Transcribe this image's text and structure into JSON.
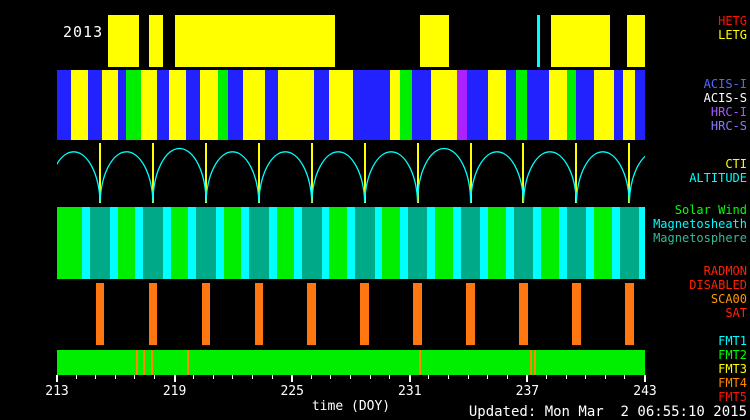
{
  "meta": {
    "updated": "Updated: Mon Mar  2 06:55:10 2015"
  },
  "chart_data": {
    "type": "timeline",
    "title": "2013",
    "xlabel": "time (DOY)",
    "x_range": [
      213,
      243
    ],
    "x_major_ticks": [
      213,
      219,
      225,
      231,
      237,
      243
    ],
    "x_minor_tick_step": 1,
    "bands": [
      {
        "id": "gratings",
        "name": "Gratings",
        "background": "#000000",
        "palette": {
          "LETG": "#ffff00",
          "HETG": "#ff0000"
        },
        "labels": [
          {
            "text": "HETG",
            "color": "#ff1100"
          },
          {
            "text": "LETG",
            "color": "#ffff00"
          }
        ],
        "segments": [
          {
            "start": 215.6,
            "end": 217.2,
            "state": "LETG"
          },
          {
            "start": 217.7,
            "end": 218.4,
            "state": "LETG"
          },
          {
            "start": 219.0,
            "end": 227.2,
            "state": "LETG"
          },
          {
            "start": 231.5,
            "end": 233.0,
            "state": "LETG"
          },
          {
            "start": 238.2,
            "end": 241.2,
            "state": "LETG"
          },
          {
            "start": 242.1,
            "end": 243.0,
            "state": "LETG"
          }
        ],
        "markers": [
          {
            "x": 237.55,
            "color": "#00ffff",
            "w": 3
          }
        ]
      },
      {
        "id": "instruments",
        "name": "Science Instruments",
        "background": "#000000",
        "palette": {
          "ACIS-I": "#2222ff",
          "ACIS-S": "#ffff00",
          "HRC-I": "#aa22ff",
          "HRC-S": "#00ee00"
        },
        "labels": [
          {
            "text": "ACIS-I",
            "color": "#5566ff"
          },
          {
            "text": "ACIS-S",
            "color": "#ffffff"
          },
          {
            "text": "HRC-I",
            "color": "#aa55ff"
          },
          {
            "text": "HRC-S",
            "color": "#8877ff"
          }
        ],
        "segments": [
          {
            "start": 213.0,
            "end": 213.7,
            "state": "ACIS-I"
          },
          {
            "start": 213.7,
            "end": 214.6,
            "state": "ACIS-S"
          },
          {
            "start": 214.6,
            "end": 215.3,
            "state": "ACIS-I"
          },
          {
            "start": 215.3,
            "end": 216.1,
            "state": "ACIS-S"
          },
          {
            "start": 216.1,
            "end": 216.5,
            "state": "ACIS-I"
          },
          {
            "start": 216.5,
            "end": 217.3,
            "state": "HRC-S"
          },
          {
            "start": 217.3,
            "end": 218.1,
            "state": "ACIS-S"
          },
          {
            "start": 218.1,
            "end": 218.7,
            "state": "ACIS-I"
          },
          {
            "start": 218.7,
            "end": 219.6,
            "state": "ACIS-S"
          },
          {
            "start": 219.6,
            "end": 220.3,
            "state": "ACIS-I"
          },
          {
            "start": 220.3,
            "end": 221.2,
            "state": "ACIS-S"
          },
          {
            "start": 221.2,
            "end": 221.7,
            "state": "HRC-S"
          },
          {
            "start": 221.7,
            "end": 222.5,
            "state": "ACIS-I"
          },
          {
            "start": 222.5,
            "end": 223.6,
            "state": "ACIS-S"
          },
          {
            "start": 223.6,
            "end": 224.3,
            "state": "ACIS-I"
          },
          {
            "start": 224.3,
            "end": 226.1,
            "state": "ACIS-S"
          },
          {
            "start": 226.1,
            "end": 226.9,
            "state": "ACIS-I"
          },
          {
            "start": 226.9,
            "end": 228.1,
            "state": "ACIS-S"
          },
          {
            "start": 228.1,
            "end": 230.0,
            "state": "ACIS-I"
          },
          {
            "start": 230.0,
            "end": 230.5,
            "state": "ACIS-S"
          },
          {
            "start": 230.5,
            "end": 231.1,
            "state": "HRC-S"
          },
          {
            "start": 231.1,
            "end": 232.1,
            "state": "ACIS-I"
          },
          {
            "start": 232.1,
            "end": 233.4,
            "state": "ACIS-S"
          },
          {
            "start": 233.4,
            "end": 233.9,
            "state": "HRC-I"
          },
          {
            "start": 233.9,
            "end": 235.0,
            "state": "ACIS-I"
          },
          {
            "start": 235.0,
            "end": 235.9,
            "state": "ACIS-S"
          },
          {
            "start": 235.9,
            "end": 236.4,
            "state": "ACIS-I"
          },
          {
            "start": 236.4,
            "end": 237.0,
            "state": "HRC-S"
          },
          {
            "start": 237.0,
            "end": 238.1,
            "state": "ACIS-I"
          },
          {
            "start": 238.1,
            "end": 239.0,
            "state": "ACIS-S"
          },
          {
            "start": 239.0,
            "end": 239.5,
            "state": "HRC-S"
          },
          {
            "start": 239.5,
            "end": 240.4,
            "state": "ACIS-I"
          },
          {
            "start": 240.4,
            "end": 241.4,
            "state": "ACIS-S"
          },
          {
            "start": 241.4,
            "end": 241.9,
            "state": "ACIS-I"
          },
          {
            "start": 241.9,
            "end": 242.5,
            "state": "ACIS-S"
          },
          {
            "start": 242.5,
            "end": 243.0,
            "state": "ACIS-I"
          }
        ]
      },
      {
        "id": "orbit",
        "name": "CTI / Altitude",
        "background": "#000000",
        "labels": [
          {
            "text": "CTI",
            "color": "#ffff00"
          },
          {
            "text": "ALTITUDE",
            "color": "#00ffff"
          }
        ],
        "altitude": {
          "color": "#00ffff",
          "orbit_period_days": 2.7,
          "perigee_times": [
            215.2,
            217.9,
            220.6,
            223.3,
            226.0,
            228.7,
            231.4,
            234.1,
            236.8,
            239.5,
            242.2
          ]
        },
        "markers": [
          {
            "x": 215.2,
            "color": "#ffff00",
            "w": 2
          },
          {
            "x": 217.9,
            "color": "#ffff00",
            "w": 2
          },
          {
            "x": 220.6,
            "color": "#ffff00",
            "w": 2
          },
          {
            "x": 223.3,
            "color": "#ffff00",
            "w": 2
          },
          {
            "x": 226.0,
            "color": "#ffff00",
            "w": 2
          },
          {
            "x": 228.7,
            "color": "#ffff00",
            "w": 2
          },
          {
            "x": 231.4,
            "color": "#ffff00",
            "w": 2
          },
          {
            "x": 234.1,
            "color": "#ffff00",
            "w": 2
          },
          {
            "x": 236.8,
            "color": "#ffff00",
            "w": 2
          },
          {
            "x": 239.5,
            "color": "#ffff00",
            "w": 2
          },
          {
            "x": 242.2,
            "color": "#ffff00",
            "w": 2
          }
        ]
      },
      {
        "id": "region",
        "name": "Magnetic Region",
        "background": "#00ee00",
        "palette": {
          "Magnetosheath": "#00ffff",
          "Magnetosphere": "#00aa88"
        },
        "labels": [
          {
            "text": "Solar Wind",
            "color": "#00ff00"
          },
          {
            "text": "Magnetosheath",
            "color": "#00ffff"
          },
          {
            "text": "Magnetosphere",
            "color": "#33bb99"
          }
        ],
        "segments": [
          {
            "start": 214.3,
            "end": 214.7,
            "state": "Magnetosheath"
          },
          {
            "start": 214.7,
            "end": 215.7,
            "state": "Magnetosphere"
          },
          {
            "start": 215.7,
            "end": 216.1,
            "state": "Magnetosheath"
          },
          {
            "start": 217.0,
            "end": 217.4,
            "state": "Magnetosheath"
          },
          {
            "start": 217.4,
            "end": 218.4,
            "state": "Magnetosphere"
          },
          {
            "start": 218.4,
            "end": 218.8,
            "state": "Magnetosheath"
          },
          {
            "start": 219.7,
            "end": 220.1,
            "state": "Magnetosheath"
          },
          {
            "start": 220.1,
            "end": 221.1,
            "state": "Magnetosphere"
          },
          {
            "start": 221.1,
            "end": 221.5,
            "state": "Magnetosheath"
          },
          {
            "start": 222.4,
            "end": 222.8,
            "state": "Magnetosheath"
          },
          {
            "start": 222.8,
            "end": 223.8,
            "state": "Magnetosphere"
          },
          {
            "start": 223.8,
            "end": 224.2,
            "state": "Magnetosheath"
          },
          {
            "start": 225.1,
            "end": 225.5,
            "state": "Magnetosheath"
          },
          {
            "start": 225.5,
            "end": 226.5,
            "state": "Magnetosphere"
          },
          {
            "start": 226.5,
            "end": 226.9,
            "state": "Magnetosheath"
          },
          {
            "start": 227.8,
            "end": 228.2,
            "state": "Magnetosheath"
          },
          {
            "start": 228.2,
            "end": 229.2,
            "state": "Magnetosphere"
          },
          {
            "start": 229.2,
            "end": 229.6,
            "state": "Magnetosheath"
          },
          {
            "start": 230.5,
            "end": 230.9,
            "state": "Magnetosheath"
          },
          {
            "start": 230.9,
            "end": 231.9,
            "state": "Magnetosphere"
          },
          {
            "start": 231.9,
            "end": 232.3,
            "state": "Magnetosheath"
          },
          {
            "start": 233.2,
            "end": 233.6,
            "state": "Magnetosheath"
          },
          {
            "start": 233.6,
            "end": 234.6,
            "state": "Magnetosphere"
          },
          {
            "start": 234.6,
            "end": 235.0,
            "state": "Magnetosheath"
          },
          {
            "start": 235.9,
            "end": 236.3,
            "state": "Magnetosheath"
          },
          {
            "start": 236.3,
            "end": 237.3,
            "state": "Magnetosphere"
          },
          {
            "start": 237.3,
            "end": 237.7,
            "state": "Magnetosheath"
          },
          {
            "start": 238.6,
            "end": 239.0,
            "state": "Magnetosheath"
          },
          {
            "start": 239.0,
            "end": 240.0,
            "state": "Magnetosphere"
          },
          {
            "start": 240.0,
            "end": 240.4,
            "state": "Magnetosheath"
          },
          {
            "start": 241.3,
            "end": 241.7,
            "state": "Magnetosheath"
          },
          {
            "start": 241.7,
            "end": 242.7,
            "state": "Magnetosphere"
          },
          {
            "start": 242.7,
            "end": 243.0,
            "state": "Magnetosheath"
          }
        ]
      },
      {
        "id": "radmon",
        "name": "Radiation Monitor",
        "background": "#000000",
        "palette": {
          "RADMON DISABLED": "#ff7711"
        },
        "labels": [
          {
            "text": "RADMON",
            "color": "#ff2200"
          },
          {
            "text": "DISABLED",
            "color": "#ff2200"
          },
          {
            "text": "SCA00",
            "color": "#ff9900"
          },
          {
            "text": "SAT",
            "color": "#ff2200"
          }
        ],
        "segments": [
          {
            "start": 214.98,
            "end": 215.42,
            "state": "RADMON DISABLED"
          },
          {
            "start": 217.68,
            "end": 218.12,
            "state": "RADMON DISABLED"
          },
          {
            "start": 220.38,
            "end": 220.82,
            "state": "RADMON DISABLED"
          },
          {
            "start": 223.08,
            "end": 223.52,
            "state": "RADMON DISABLED"
          },
          {
            "start": 225.78,
            "end": 226.22,
            "state": "RADMON DISABLED"
          },
          {
            "start": 228.48,
            "end": 228.92,
            "state": "RADMON DISABLED"
          },
          {
            "start": 231.18,
            "end": 231.62,
            "state": "RADMON DISABLED"
          },
          {
            "start": 233.88,
            "end": 234.32,
            "state": "RADMON DISABLED"
          },
          {
            "start": 236.58,
            "end": 237.02,
            "state": "RADMON DISABLED"
          },
          {
            "start": 239.28,
            "end": 239.72,
            "state": "RADMON DISABLED"
          },
          {
            "start": 241.98,
            "end": 242.42,
            "state": "RADMON DISABLED"
          }
        ]
      },
      {
        "id": "telemetry",
        "name": "Telemetry Format",
        "background": "#00ee00",
        "labels": [
          {
            "text": "FMT1",
            "color": "#00ffff"
          },
          {
            "text": "FMT2",
            "color": "#00ff00"
          },
          {
            "text": "FMT3",
            "color": "#ffff00"
          },
          {
            "text": "FMT4",
            "color": "#ff8800"
          },
          {
            "text": "FMT5",
            "color": "#ff1100"
          }
        ],
        "markers": [
          {
            "x": 217.1,
            "color": "#ff8800",
            "w": 2
          },
          {
            "x": 217.45,
            "color": "#ff8800",
            "w": 2
          },
          {
            "x": 217.85,
            "color": "#ff8800",
            "w": 2
          },
          {
            "x": 219.7,
            "color": "#ff8800",
            "w": 2
          },
          {
            "x": 231.5,
            "color": "#ff8800",
            "w": 2
          },
          {
            "x": 237.2,
            "color": "#ff8800",
            "w": 2
          },
          {
            "x": 237.4,
            "color": "#ff8800",
            "w": 2
          }
        ]
      }
    ]
  }
}
